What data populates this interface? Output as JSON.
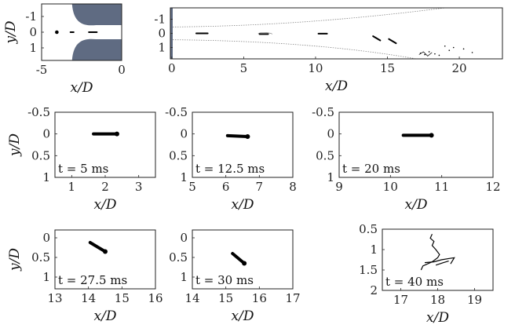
{
  "figure": {
    "nozzle_color": "#5f6b82",
    "ink_color": "#000000"
  },
  "chart_data": [
    {
      "id": "nozzle",
      "type": "scatter",
      "xlabel": "x/D",
      "ylabel": "y/D",
      "xlim": [
        -5,
        0
      ],
      "ylim": [
        -1.8,
        1.8
      ],
      "y_inverted": true,
      "xticks": [
        "-5",
        "0"
      ],
      "yticks": [
        "-1",
        "0",
        "1"
      ],
      "xtick_values": [
        -5,
        0
      ],
      "ytick_values": [
        -1,
        0,
        1
      ],
      "blobs": [
        {
          "kind": "dot",
          "x": -4.05,
          "y": 0.0
        },
        {
          "kind": "seg",
          "x0": -3.2,
          "x1": -3.0,
          "y0": 0.0,
          "y1": 0.0
        },
        {
          "kind": "seg",
          "x0": -2.05,
          "x1": -1.55,
          "y0": 0.0,
          "y1": 0.0
        }
      ]
    },
    {
      "id": "overview",
      "type": "scatter",
      "xlabel": "x/D",
      "ylabel": "",
      "xlim": [
        -0.1,
        23
      ],
      "ylim": [
        -1.8,
        1.8
      ],
      "y_inverted": true,
      "xticks": [
        "0",
        "5",
        "10",
        "15",
        "20"
      ],
      "yticks": [
        "-1",
        "0",
        "1"
      ],
      "xtick_values": [
        0,
        5,
        10,
        15,
        20
      ],
      "ytick_values": [
        -1,
        0,
        1
      ],
      "blobs": [
        {
          "kind": "seg",
          "x0": 1.7,
          "x1": 2.5,
          "y0": 0.0,
          "y1": 0.0
        },
        {
          "kind": "seg",
          "x0": 6.1,
          "x1": 6.7,
          "y0": 0.05,
          "y1": 0.05
        },
        {
          "kind": "seg",
          "x0": 10.2,
          "x1": 10.8,
          "y0": 0.02,
          "y1": 0.02
        },
        {
          "kind": "seg",
          "x0": 14.0,
          "x1": 14.5,
          "y0": 0.2,
          "y1": 0.5
        },
        {
          "kind": "seg",
          "x0": 15.1,
          "x1": 15.6,
          "y0": 0.4,
          "y1": 0.7
        }
      ]
    },
    {
      "id": "t5",
      "type": "scatter",
      "annotation": "t = 5 ms",
      "xlabel": "x/D",
      "ylabel": "y/D",
      "xlim": [
        0.5,
        3.5
      ],
      "ylim": [
        -0.5,
        1
      ],
      "xticks": [
        "1",
        "2",
        "3"
      ],
      "yticks": [
        "-0.5",
        "0",
        "0.5",
        "1"
      ],
      "xtick_values": [
        1,
        2,
        3
      ],
      "ytick_values": [
        -0.5,
        0,
        0.5,
        1
      ],
      "blobs": [
        {
          "kind": "seg",
          "x0": 1.65,
          "x1": 2.35,
          "y0": 0.0,
          "y1": 0.0
        }
      ]
    },
    {
      "id": "t12_5",
      "type": "scatter",
      "annotation": "t = 12.5 ms",
      "xlabel": "x/D",
      "ylabel": "",
      "xlim": [
        5,
        8
      ],
      "ylim": [
        -0.5,
        1
      ],
      "xticks": [
        "5",
        "6",
        "7",
        "8"
      ],
      "yticks": [
        "-0.5",
        "0",
        "0.5",
        "1"
      ],
      "xtick_values": [
        5,
        6,
        7,
        8
      ],
      "ytick_values": [
        -0.5,
        0,
        0.5,
        1
      ],
      "blobs": [
        {
          "kind": "seg",
          "x0": 6.05,
          "x1": 6.65,
          "y0": 0.04,
          "y1": 0.06
        }
      ]
    },
    {
      "id": "t20",
      "type": "scatter",
      "annotation": "t = 20 ms",
      "xlabel": "x/D",
      "ylabel": "",
      "xlim": [
        9,
        12
      ],
      "ylim": [
        -0.5,
        1
      ],
      "xticks": [
        "9",
        "10",
        "11",
        "12"
      ],
      "yticks": [
        "-0.5",
        "0",
        "0.5",
        "1"
      ],
      "xtick_values": [
        9,
        10,
        11,
        12
      ],
      "ytick_values": [
        -0.5,
        0,
        0.5,
        1
      ],
      "blobs": [
        {
          "kind": "seg",
          "x0": 10.25,
          "x1": 10.8,
          "y0": 0.03,
          "y1": 0.03
        }
      ]
    },
    {
      "id": "t27_5",
      "type": "scatter",
      "annotation": "t = 27.5 ms",
      "xlabel": "x/D",
      "ylabel": "y/D",
      "xlim": [
        13,
        16
      ],
      "ylim": [
        -0.2,
        1.3
      ],
      "xticks": [
        "13",
        "14",
        "15",
        "16"
      ],
      "yticks": [
        "0",
        "0.5",
        "1"
      ],
      "xtick_values": [
        13,
        14,
        15,
        16
      ],
      "ytick_values": [
        0,
        0.5,
        1
      ],
      "blobs": [
        {
          "kind": "seg",
          "x0": 14.05,
          "x1": 14.5,
          "y0": 0.12,
          "y1": 0.35
        }
      ]
    },
    {
      "id": "t30",
      "type": "scatter",
      "annotation": "t = 30 ms",
      "xlabel": "x/D",
      "ylabel": "",
      "xlim": [
        14,
        17
      ],
      "ylim": [
        -0.2,
        1.3
      ],
      "xticks": [
        "14",
        "15",
        "16",
        "17"
      ],
      "yticks": [
        "0",
        "0.5",
        "1"
      ],
      "xtick_values": [
        14,
        15,
        16,
        17
      ],
      "ytick_values": [
        0,
        0.5,
        1
      ],
      "blobs": [
        {
          "kind": "seg",
          "x0": 15.2,
          "x1": 15.55,
          "y0": 0.4,
          "y1": 0.65
        }
      ]
    },
    {
      "id": "t40",
      "type": "scatter",
      "annotation": "t = 40 ms",
      "xlabel": "x/D",
      "ylabel": "",
      "xlim": [
        16.5,
        19.5
      ],
      "ylim": [
        0.5,
        2
      ],
      "xticks": [
        "17",
        "18",
        "19"
      ],
      "yticks": [
        "0.5",
        "1",
        "1.5",
        "2"
      ],
      "xtick_values": [
        17,
        18,
        19
      ],
      "ytick_values": [
        0.5,
        1,
        1.5,
        2
      ],
      "blobs": [
        {
          "kind": "curve",
          "points": [
            [
              17.85,
              0.62
            ],
            [
              17.8,
              0.72
            ],
            [
              17.9,
              0.8
            ],
            [
              17.85,
              0.9
            ],
            [
              17.95,
              1.0
            ],
            [
              18.05,
              1.12
            ],
            [
              18.0,
              1.2
            ],
            [
              17.85,
              1.3
            ],
            [
              17.6,
              1.4
            ],
            [
              17.55,
              1.5
            ]
          ]
        },
        {
          "kind": "curve",
          "points": [
            [
              17.65,
              1.32
            ],
            [
              17.9,
              1.3
            ],
            [
              18.1,
              1.25
            ],
            [
              18.3,
              1.22
            ],
            [
              18.45,
              1.2
            ],
            [
              18.35,
              1.35
            ]
          ]
        },
        {
          "kind": "curve",
          "points": [
            [
              17.95,
              1.38
            ],
            [
              18.15,
              1.32
            ],
            [
              18.3,
              1.28
            ]
          ]
        }
      ]
    }
  ]
}
